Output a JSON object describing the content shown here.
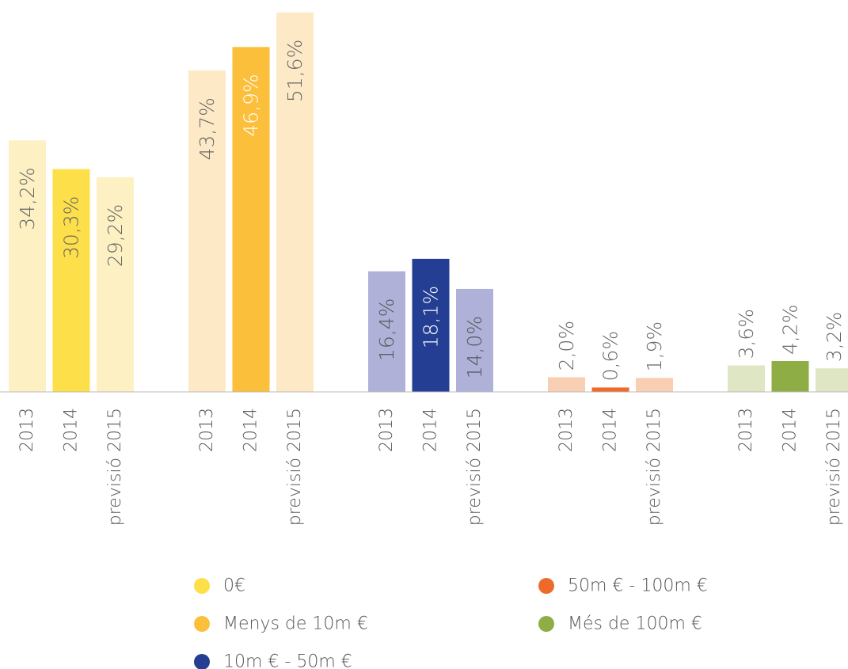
{
  "chart_data": {
    "type": "grouped_bar",
    "categories": [
      "2013",
      "2014",
      "previsió 2015"
    ],
    "ylim": [
      0,
      52
    ],
    "series": [
      {
        "name": "0€",
        "color": "#fddf4a",
        "bar_colors": [
          "#fdf0c2",
          "#fddf4a",
          "#fdf0c2"
        ],
        "label_colors": [
          "#666666",
          "#666666",
          "#666666"
        ],
        "values": [
          34.2,
          30.3,
          29.2
        ],
        "value_labels": [
          "34,2%",
          "30,3%",
          "29,2%"
        ]
      },
      {
        "name": "Menys de 10m €",
        "color": "#fbbf3c",
        "bar_colors": [
          "#fde9c5",
          "#fbbf3c",
          "#fde9c5"
        ],
        "label_colors": [
          "#666666",
          "#ffffff",
          "#666666"
        ],
        "values": [
          43.7,
          46.9,
          51.6
        ],
        "value_labels": [
          "43,7%",
          "46,9%",
          "51,6%"
        ]
      },
      {
        "name": "10m € - 50m €",
        "color": "#233e92",
        "bar_colors": [
          "#afb1d9",
          "#233e92",
          "#afb1d9"
        ],
        "label_colors": [
          "#555555",
          "#ffffff",
          "#555555"
        ],
        "values": [
          16.4,
          18.1,
          14.0
        ],
        "value_labels": [
          "16,4%",
          "18,1%",
          "14,0%"
        ]
      },
      {
        "name": "50m € - 100m €",
        "color": "#ee6a2b",
        "bar_colors": [
          "#f9cfb3",
          "#ee6a2b",
          "#f9cfb3"
        ],
        "label_colors": [
          "#666666",
          "#666666",
          "#666666"
        ],
        "values": [
          2.0,
          0.6,
          1.9
        ],
        "value_labels": [
          "2,0%",
          "0,6%",
          "1,9%"
        ]
      },
      {
        "name": "Més de 100m €",
        "color": "#8fad45",
        "bar_colors": [
          "#dfe6c4",
          "#8fad45",
          "#dfe6c4"
        ],
        "label_colors": [
          "#666666",
          "#666666",
          "#666666"
        ],
        "values": [
          3.6,
          4.2,
          3.2
        ],
        "value_labels": [
          "3,6%",
          "4,2%",
          "3,2%"
        ]
      }
    ]
  }
}
